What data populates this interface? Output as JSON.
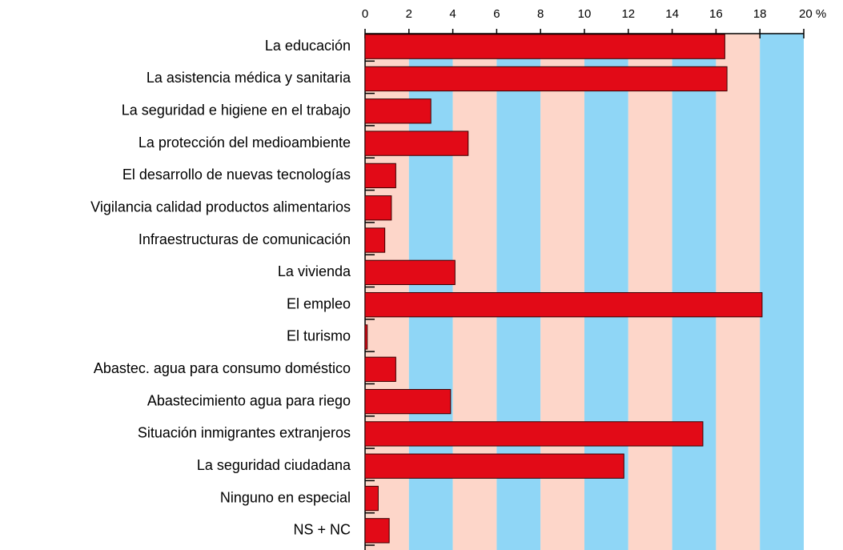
{
  "chart_data": {
    "type": "barh",
    "categories": [
      "La educación",
      "La asistencia médica y sanitaria",
      "La seguridad e higiene en el trabajo",
      "La protección del medioambiente",
      "El desarrollo de nuevas tecnologías",
      "Vigilancia calidad productos alimentarios",
      "Infraestructuras de comunicación",
      "La vivienda",
      "El empleo",
      "El turismo",
      "Abastec. agua para consumo doméstico",
      "Abastecimiento agua para riego",
      "Situación inmigrantes extranjeros",
      "La seguridad ciudadana",
      "Ninguno en especial",
      "NS + NC"
    ],
    "values": [
      16.4,
      16.5,
      3.0,
      4.7,
      1.4,
      1.2,
      0.9,
      4.1,
      18.1,
      0.1,
      1.4,
      3.9,
      15.4,
      11.8,
      0.6,
      1.1
    ],
    "color": "#e20a17",
    "xlim": [
      0,
      20
    ],
    "xticks": [
      0,
      2,
      4,
      6,
      8,
      10,
      12,
      14,
      16,
      18,
      {
        "value": 20,
        "label": "20 %"
      }
    ],
    "band_colors": [
      "#fdd6c9",
      "#8fd6f6"
    ]
  }
}
